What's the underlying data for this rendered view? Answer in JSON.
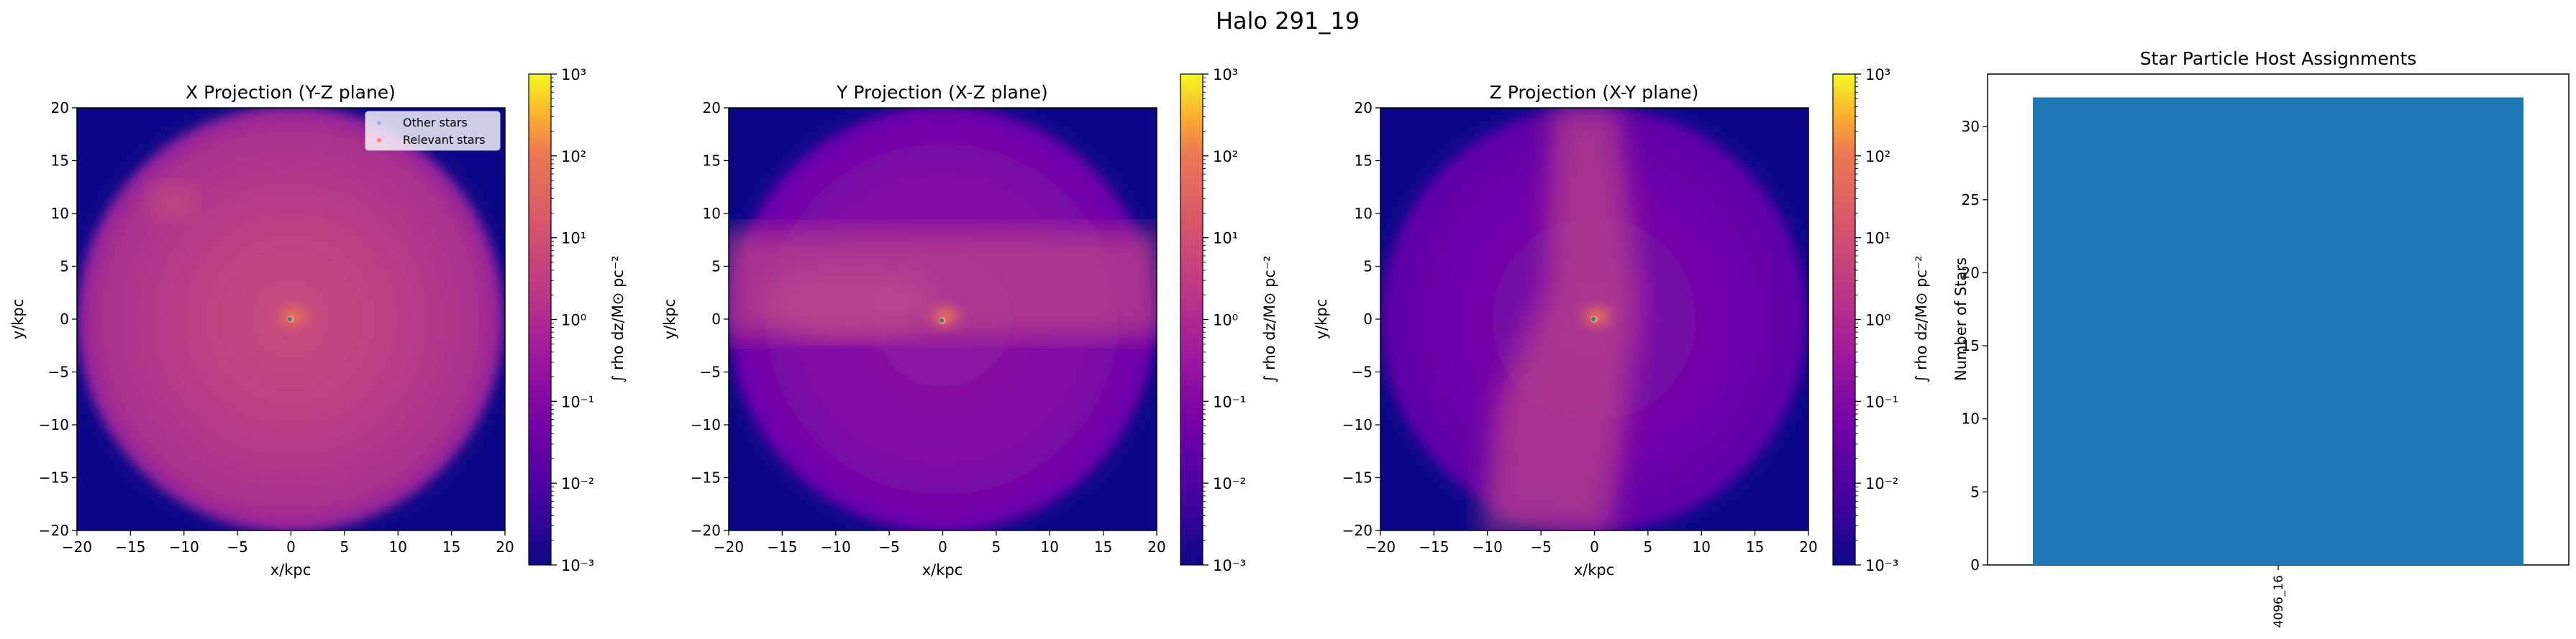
{
  "figure": {
    "title": "Halo 291_19"
  },
  "colors": {
    "bar": "#1f77b4",
    "background_outside_halo": "#0d0887",
    "other_stars_marker": "#a8a8ff",
    "relevant_stars_marker": "#ff7f7f"
  },
  "chart_data": [
    {
      "type": "heatmap",
      "title": "X Projection (Y-Z plane)",
      "xlabel": "x/kpc",
      "ylabel": "y/kpc",
      "xlim": [
        -20,
        20
      ],
      "ylim": [
        -20,
        20
      ],
      "xticks": [
        -20,
        -15,
        -10,
        -5,
        0,
        5,
        10,
        15,
        20
      ],
      "yticks": [
        -20,
        -15,
        -10,
        -5,
        0,
        5,
        10,
        15,
        20
      ],
      "colormap": "plasma",
      "colorbar": {
        "label": "∫ rho dz/M⊙ pc⁻²",
        "scale": "log",
        "range": [
          0.001,
          1000
        ],
        "ticks": [
          "10³",
          "10²",
          "10¹",
          "10⁰",
          "10⁻¹",
          "10⁻²",
          "10⁻³"
        ]
      },
      "legend": {
        "position": "top-right",
        "entries": [
          "Other stars",
          "Relevant stars"
        ]
      },
      "stars_center": [
        0,
        0
      ]
    },
    {
      "type": "heatmap",
      "title": "Y Projection (X-Z plane)",
      "xlabel": "x/kpc",
      "ylabel": "y/kpc",
      "xlim": [
        -20,
        20
      ],
      "ylim": [
        -20,
        20
      ],
      "xticks": [
        -20,
        -15,
        -10,
        -5,
        0,
        5,
        10,
        15,
        20
      ],
      "yticks": [
        -20,
        -15,
        -10,
        -5,
        0,
        5,
        10,
        15,
        20
      ],
      "colormap": "plasma",
      "colorbar": {
        "label": "∫ rho dz/M⊙ pc⁻²",
        "scale": "log",
        "range": [
          0.001,
          1000
        ],
        "ticks": [
          "10³",
          "10²",
          "10¹",
          "10⁰",
          "10⁻¹",
          "10⁻²",
          "10⁻³"
        ]
      },
      "stars_center": [
        0,
        0
      ]
    },
    {
      "type": "heatmap",
      "title": "Z Projection (X-Y plane)",
      "xlabel": "x/kpc",
      "ylabel": "y/kpc",
      "xlim": [
        -20,
        20
      ],
      "ylim": [
        -20,
        20
      ],
      "xticks": [
        -20,
        -15,
        -10,
        -5,
        0,
        5,
        10,
        15,
        20
      ],
      "yticks": [
        -20,
        -15,
        -10,
        -5,
        0,
        5,
        10,
        15,
        20
      ],
      "colormap": "plasma",
      "colorbar": {
        "label": "∫ rho dz/M⊙ pc⁻²",
        "scale": "log",
        "range": [
          0.001,
          1000
        ],
        "ticks": [
          "10³",
          "10²",
          "10¹",
          "10⁰",
          "10⁻¹",
          "10⁻²",
          "10⁻³"
        ]
      },
      "stars_center": [
        0,
        0
      ]
    },
    {
      "type": "bar",
      "title": "Star Particle Host Assignments",
      "xlabel": "",
      "ylabel": "Number of Stars",
      "categories": [
        "4096_16"
      ],
      "values": [
        32
      ],
      "ylim": [
        0,
        33.6
      ],
      "yticks": [
        0,
        5,
        10,
        15,
        20,
        25,
        30
      ],
      "grid": false
    }
  ]
}
